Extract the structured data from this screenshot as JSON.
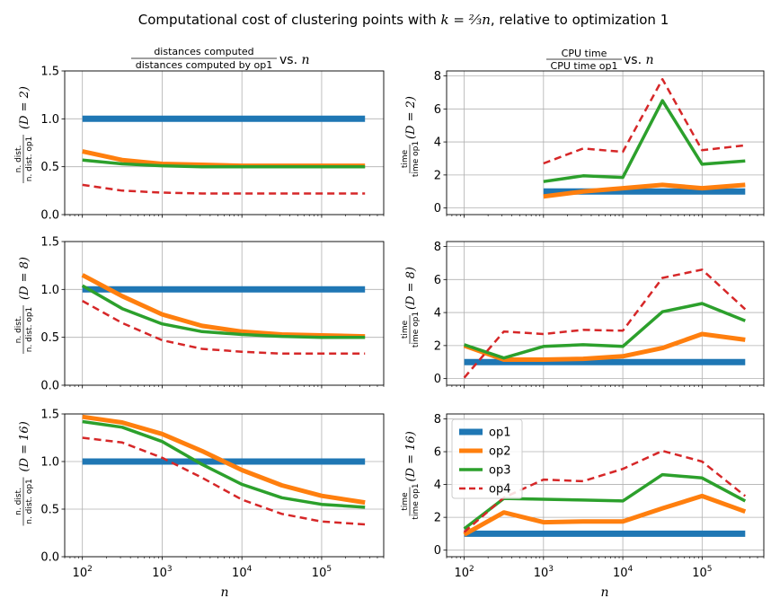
{
  "figure": {
    "title_prefix": "Computational cost of clustering points with ",
    "title_math": "k = ⅔n",
    "title_suffix": ", relative to optimization 1"
  },
  "left_column_title": {
    "numerator": "distances computed",
    "denominator": "distances computed by op1",
    "suffix": " vs. ",
    "var": "n"
  },
  "right_column_title": {
    "numerator": "CPU time",
    "denominator": "CPU time op1",
    "suffix": " vs. ",
    "var": "n"
  },
  "left_ylabel": {
    "numerator": "n. dist.",
    "denominator": "n. dist. op1"
  },
  "right_ylabel": {
    "numerator": "time",
    "denominator": "time op1"
  },
  "row_labels": [
    "(D = 2)",
    "(D = 8)",
    "(D = 16)"
  ],
  "xlabel": "n",
  "legend": [
    "op1",
    "op2",
    "op3",
    "op4"
  ],
  "colors": {
    "op1": "#1f77b4",
    "op2": "#ff7f0e",
    "op3": "#2ca02c",
    "op4": "#d62728",
    "grid": "#b0b0b0"
  },
  "chart_data": [
    {
      "type": "line",
      "panel": "distances, D = 2",
      "xscale": "log",
      "xlim": [
        60,
        600000
      ],
      "ylim": [
        0,
        1.5
      ],
      "yticks": [
        "0.0",
        "0.5",
        "1.0",
        "1.5"
      ],
      "series": [
        {
          "name": "op1",
          "x": [
            100,
            350000
          ],
          "values": [
            1.0,
            1.0
          ]
        },
        {
          "name": "op2",
          "x": [
            100,
            316,
            1000,
            3162,
            10000,
            31623,
            100000,
            350000
          ],
          "values": [
            0.66,
            0.57,
            0.53,
            0.52,
            0.51,
            0.51,
            0.51,
            0.51
          ]
        },
        {
          "name": "op3",
          "x": [
            100,
            316,
            1000,
            3162,
            10000,
            31623,
            100000,
            350000
          ],
          "values": [
            0.57,
            0.53,
            0.51,
            0.5,
            0.5,
            0.5,
            0.5,
            0.5
          ]
        },
        {
          "name": "op4",
          "x": [
            100,
            316,
            1000,
            3162,
            10000,
            31623,
            100000,
            350000
          ],
          "values": [
            0.31,
            0.25,
            0.23,
            0.22,
            0.22,
            0.22,
            0.22,
            0.22
          ]
        }
      ]
    },
    {
      "type": "line",
      "panel": "CPU time, D = 2",
      "xscale": "log",
      "xlim": [
        60,
        600000
      ],
      "ylim": [
        -0.4,
        8.3
      ],
      "yticks": [
        "0",
        "2",
        "4",
        "6",
        "8"
      ],
      "series": [
        {
          "name": "op1",
          "x": [
            1000,
            350000
          ],
          "values": [
            1.0,
            1.0
          ]
        },
        {
          "name": "op2",
          "x": [
            1000,
            3162,
            10000,
            31623,
            100000,
            350000
          ],
          "values": [
            0.7,
            1.0,
            1.2,
            1.4,
            1.2,
            1.4
          ]
        },
        {
          "name": "op3",
          "x": [
            1000,
            3162,
            10000,
            31623,
            100000,
            350000
          ],
          "values": [
            1.6,
            1.95,
            1.85,
            6.5,
            2.65,
            2.85
          ]
        },
        {
          "name": "op4",
          "x": [
            1000,
            3162,
            10000,
            31623,
            100000,
            350000
          ],
          "values": [
            2.7,
            3.6,
            3.4,
            7.8,
            3.5,
            3.8
          ]
        }
      ]
    },
    {
      "type": "line",
      "panel": "distances, D = 8",
      "xscale": "log",
      "xlim": [
        60,
        600000
      ],
      "ylim": [
        0,
        1.5
      ],
      "yticks": [
        "0.0",
        "0.5",
        "1.0",
        "1.5"
      ],
      "series": [
        {
          "name": "op1",
          "x": [
            100,
            350000
          ],
          "values": [
            1.0,
            1.0
          ]
        },
        {
          "name": "op2",
          "x": [
            100,
            316,
            1000,
            3162,
            10000,
            31623,
            100000,
            350000
          ],
          "values": [
            1.15,
            0.93,
            0.74,
            0.62,
            0.56,
            0.53,
            0.52,
            0.51
          ]
        },
        {
          "name": "op3",
          "x": [
            100,
            316,
            1000,
            3162,
            10000,
            31623,
            100000,
            350000
          ],
          "values": [
            1.04,
            0.8,
            0.64,
            0.56,
            0.53,
            0.51,
            0.5,
            0.5
          ]
        },
        {
          "name": "op4",
          "x": [
            100,
            316,
            1000,
            3162,
            10000,
            31623,
            100000,
            350000
          ],
          "values": [
            0.88,
            0.65,
            0.47,
            0.38,
            0.35,
            0.33,
            0.33,
            0.33
          ]
        }
      ]
    },
    {
      "type": "line",
      "panel": "CPU time, D = 8",
      "xscale": "log",
      "xlim": [
        60,
        600000
      ],
      "ylim": [
        -0.4,
        8.3
      ],
      "yticks": [
        "0",
        "2",
        "4",
        "6",
        "8"
      ],
      "series": [
        {
          "name": "op1",
          "x": [
            100,
            350000
          ],
          "values": [
            1.0,
            1.0
          ]
        },
        {
          "name": "op2",
          "x": [
            100,
            316,
            1000,
            3162,
            10000,
            31623,
            100000,
            350000
          ],
          "values": [
            2.0,
            1.15,
            1.15,
            1.2,
            1.35,
            1.85,
            2.7,
            2.35
          ]
        },
        {
          "name": "op3",
          "x": [
            100,
            316,
            1000,
            3162,
            10000,
            31623,
            100000,
            350000
          ],
          "values": [
            2.05,
            1.25,
            1.95,
            2.05,
            1.95,
            4.05,
            4.55,
            3.5
          ]
        },
        {
          "name": "op4",
          "x": [
            100,
            316,
            1000,
            3162,
            10000,
            31623,
            100000,
            350000
          ],
          "values": [
            0.05,
            2.85,
            2.7,
            2.95,
            2.9,
            6.1,
            6.6,
            4.2
          ]
        }
      ]
    },
    {
      "type": "line",
      "panel": "distances, D = 16",
      "xscale": "log",
      "xlim": [
        60,
        600000
      ],
      "ylim": [
        0,
        1.5
      ],
      "yticks": [
        "0.0",
        "0.5",
        "1.0",
        "1.5"
      ],
      "series": [
        {
          "name": "op1",
          "x": [
            100,
            350000
          ],
          "values": [
            1.0,
            1.0
          ]
        },
        {
          "name": "op2",
          "x": [
            100,
            316,
            1000,
            3162,
            10000,
            31623,
            100000,
            350000
          ],
          "values": [
            1.47,
            1.41,
            1.29,
            1.11,
            0.91,
            0.75,
            0.64,
            0.57
          ]
        },
        {
          "name": "op3",
          "x": [
            100,
            316,
            1000,
            3162,
            10000,
            31623,
            100000,
            350000
          ],
          "values": [
            1.42,
            1.36,
            1.21,
            0.97,
            0.76,
            0.62,
            0.55,
            0.52
          ]
        },
        {
          "name": "op4",
          "x": [
            100,
            316,
            1000,
            3162,
            10000,
            31623,
            100000,
            350000
          ],
          "values": [
            1.25,
            1.2,
            1.04,
            0.83,
            0.6,
            0.45,
            0.37,
            0.34
          ]
        }
      ]
    },
    {
      "type": "line",
      "panel": "CPU time, D = 16",
      "xscale": "log",
      "xlim": [
        60,
        600000
      ],
      "ylim": [
        -0.4,
        8.3
      ],
      "yticks": [
        "0",
        "2",
        "4",
        "6",
        "8"
      ],
      "legend": "upper left",
      "series": [
        {
          "name": "op1",
          "x": [
            100,
            350000
          ],
          "values": [
            1.0,
            1.0
          ]
        },
        {
          "name": "op2",
          "x": [
            100,
            316,
            1000,
            3162,
            10000,
            31623,
            100000,
            350000
          ],
          "values": [
            0.95,
            2.3,
            1.7,
            1.75,
            1.75,
            2.55,
            3.3,
            2.35
          ]
        },
        {
          "name": "op3",
          "x": [
            100,
            316,
            1000,
            3162,
            10000,
            31623,
            100000,
            350000
          ],
          "values": [
            1.3,
            3.15,
            3.1,
            3.05,
            3.0,
            4.6,
            4.4,
            3.0
          ]
        },
        {
          "name": "op4",
          "x": [
            100,
            316,
            1000,
            3162,
            10000,
            31623,
            100000,
            350000
          ],
          "values": [
            1.1,
            3.2,
            4.3,
            4.2,
            4.95,
            6.05,
            5.4,
            3.3
          ]
        }
      ]
    }
  ]
}
